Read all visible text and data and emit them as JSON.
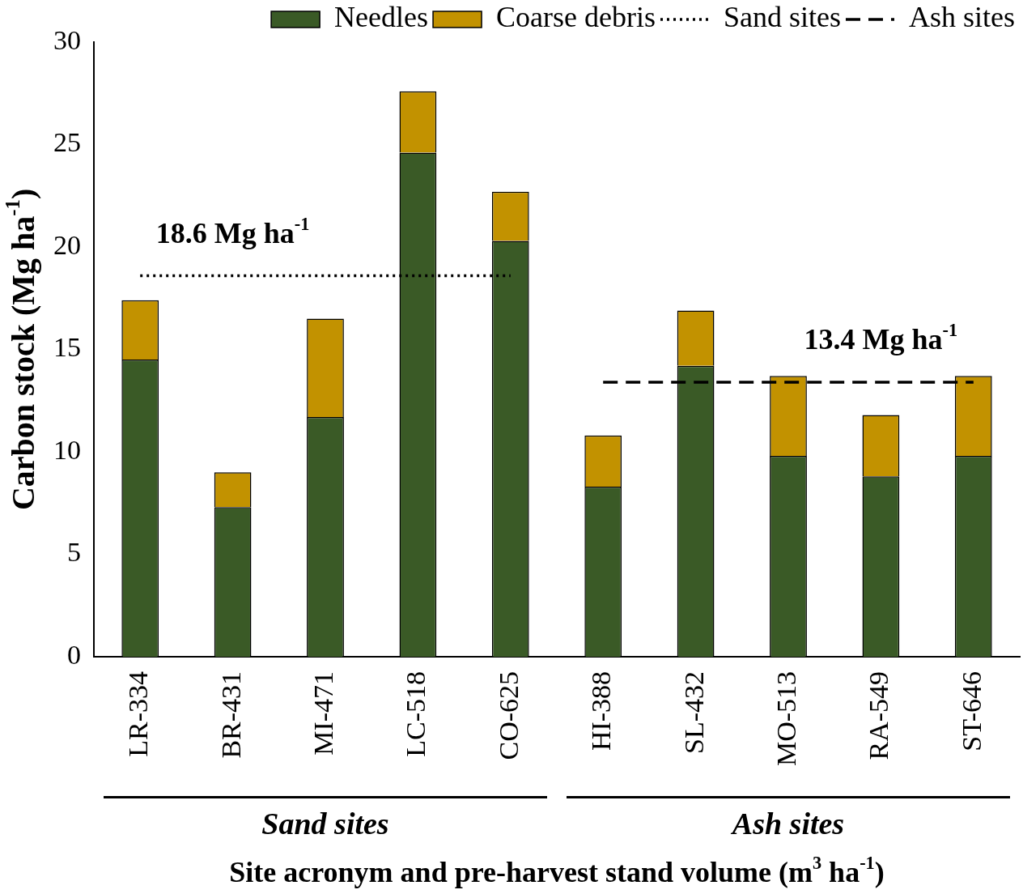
{
  "chart_data": {
    "type": "bar",
    "stacked": true,
    "xlabel": "Site acronym and pre-harvest stand volume (m$^{3}$ ha$^{-1}$)",
    "ylabel": "Carbon stock (Mg ha$^{-1}$)",
    "categories": [
      "LR-334",
      "BR-431",
      "MI-471",
      "LC-518",
      "CO-625",
      "HI-388",
      "SL-432",
      "MO-513",
      "RA-549",
      "ST-646"
    ],
    "series": [
      {
        "name": "Needles",
        "color": "#3a5a26",
        "values": [
          14.5,
          7.3,
          11.7,
          24.6,
          20.3,
          8.3,
          14.2,
          9.8,
          8.8,
          9.8
        ]
      },
      {
        "name": "Coarse debris",
        "color": "#c29200",
        "values": [
          2.9,
          1.7,
          4.8,
          3.0,
          2.4,
          2.5,
          2.7,
          3.9,
          3.0,
          3.9
        ]
      },
      {
        "name": "Sand sites",
        "type": "line",
        "line_style": "dotted",
        "color": "#000000",
        "values": [
          18.6,
          18.6,
          18.6,
          18.6,
          18.6,
          null,
          null,
          null,
          null,
          null
        ]
      },
      {
        "name": "Ash sites",
        "type": "line",
        "line_style": "dashed",
        "color": "#000000",
        "values": [
          null,
          null,
          null,
          null,
          null,
          13.4,
          13.4,
          13.4,
          13.4,
          13.4
        ]
      }
    ],
    "annotations": [
      {
        "text": "18.6 Mg ha$^{-1}$",
        "x": "BR-431",
        "y": 18.6
      },
      {
        "text": "13.4 Mg ha$^{-1}$",
        "x": "RA-549",
        "y": 13.4
      },
      "Sand sites",
      "Ash sites"
    ],
    "ylim": [
      0,
      30
    ],
    "yticks": [
      0,
      5,
      10,
      15,
      20,
      25,
      30
    ],
    "grid": false,
    "legend": "top right",
    "marker": "none"
  }
}
